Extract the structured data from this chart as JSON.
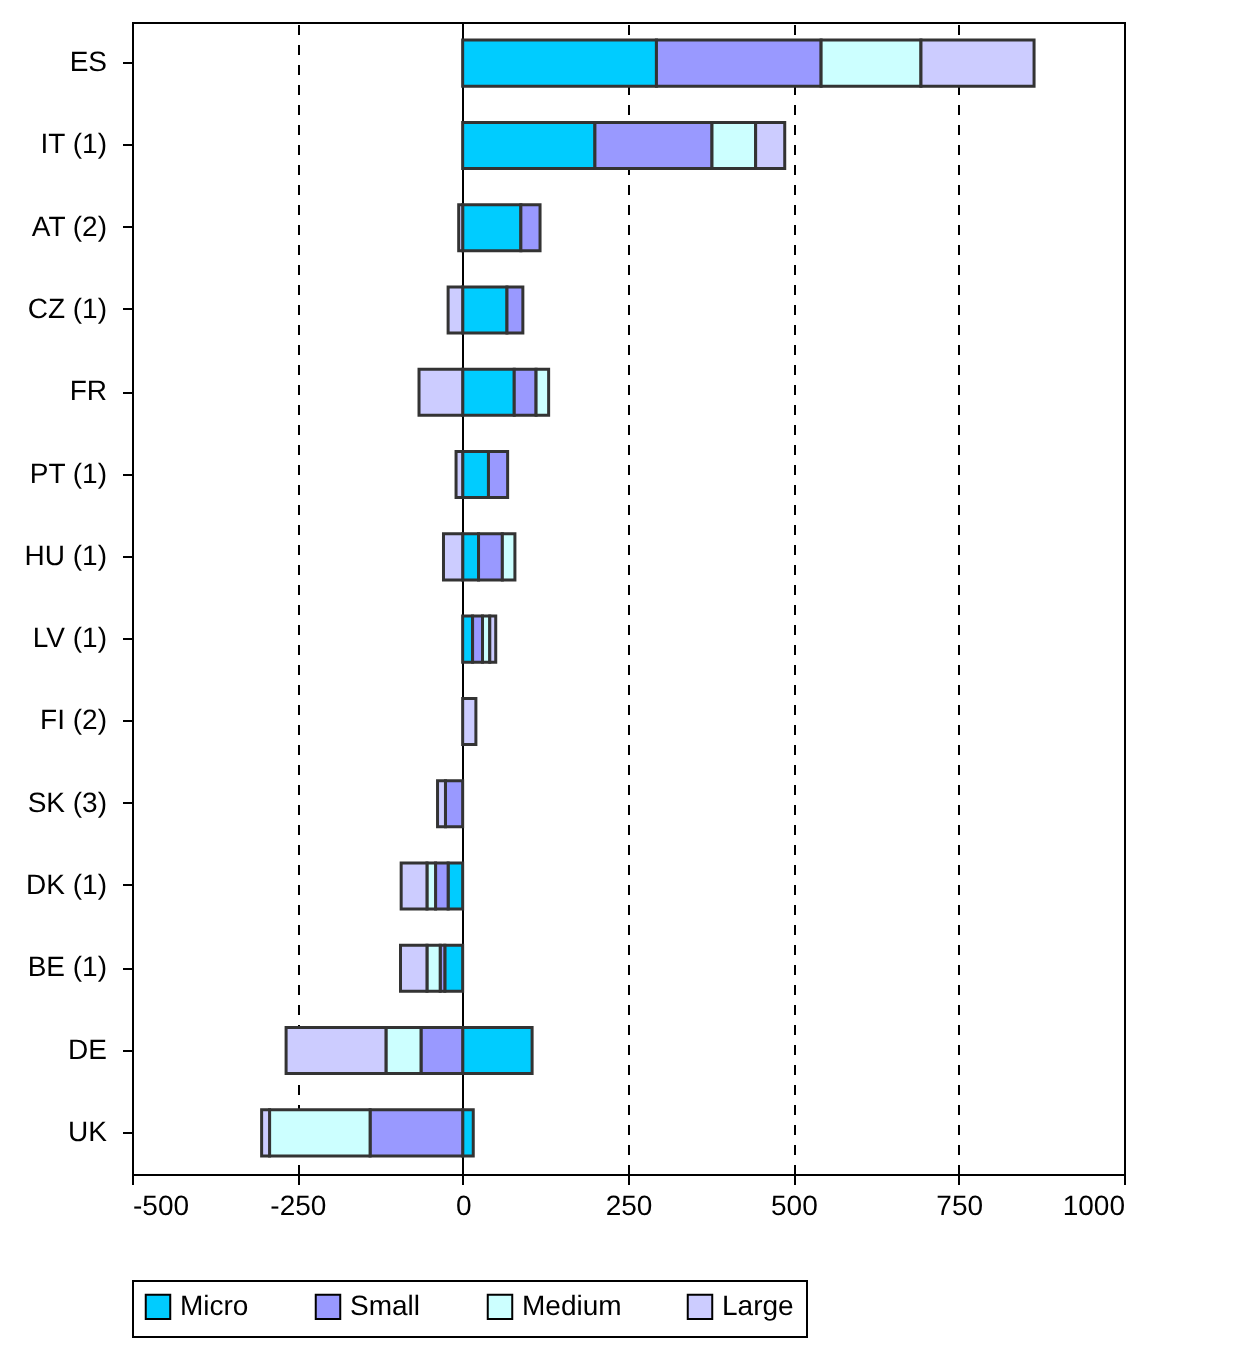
{
  "chart_data": {
    "type": "bar",
    "orientation": "horizontal",
    "stacked": true,
    "categories": [
      "ES",
      "IT (1)",
      "AT (2)",
      "CZ (1)",
      "FR",
      "PT (1)",
      "HU (1)",
      "LV (1)",
      "FI (2)",
      "SK (3)",
      "DK (1)",
      "BE (1)",
      "DE",
      "UK"
    ],
    "series": [
      {
        "name": "Micro",
        "color": "#00ccff",
        "values": [
          293,
          200,
          88,
          67,
          78,
          39,
          24,
          15,
          null,
          null,
          -22,
          -27,
          105,
          16
        ]
      },
      {
        "name": "Small",
        "color": "#9999ff",
        "values": [
          249,
          177,
          29,
          24,
          33,
          29,
          36,
          15,
          null,
          -26,
          -19,
          -7,
          -63,
          -140
        ]
      },
      {
        "name": "Medium",
        "color": "#ccffff",
        "values": [
          151,
          66,
          null,
          null,
          19,
          null,
          19,
          11,
          null,
          null,
          -13,
          -20,
          -53,
          -152
        ]
      },
      {
        "name": "Large",
        "color": "#ccccff",
        "values": [
          171,
          44,
          -6,
          -22,
          -66,
          -10,
          -29,
          9,
          20,
          -12,
          -39,
          -40,
          -151,
          -12
        ]
      }
    ],
    "xlim": [
      -500,
      1000
    ],
    "xticks": [
      -500,
      -250,
      0,
      250,
      500,
      750,
      1000
    ],
    "grid": "x",
    "legend": "bottom"
  }
}
